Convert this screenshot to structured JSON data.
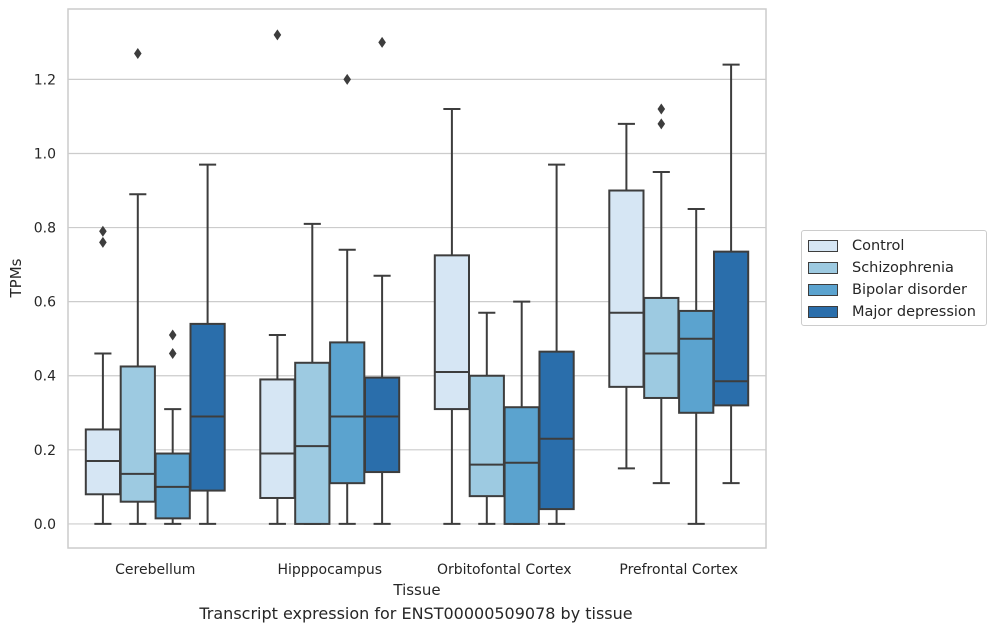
{
  "chart_data": {
    "type": "box",
    "title": "",
    "xlabel": "Tissue",
    "ylabel": "TPMs",
    "caption": "Transcript expression for ENST00000509078 by tissue",
    "ylim": [
      -0.065,
      1.39
    ],
    "yticks": [
      "0.0",
      "0.2",
      "0.4",
      "0.6",
      "0.8",
      "1.0",
      "1.2"
    ],
    "categories": [
      "Cerebellum",
      "Hipppocampus",
      "Orbitofontal Cortex",
      "Prefrontal Cortex"
    ],
    "legend_position": "right",
    "grid": true,
    "series": [
      {
        "name": "Control",
        "color": "#d6e6f4",
        "boxes": [
          {
            "whislo": 0.0,
            "q1": 0.08,
            "med": 0.17,
            "q3": 0.255,
            "whishi": 0.46,
            "fliers": [
              0.76,
              0.79
            ]
          },
          {
            "whislo": 0.0,
            "q1": 0.07,
            "med": 0.19,
            "q3": 0.39,
            "whishi": 0.51,
            "fliers": [
              1.32
            ]
          },
          {
            "whislo": 0.0,
            "q1": 0.31,
            "med": 0.41,
            "q3": 0.725,
            "whishi": 1.12,
            "fliers": []
          },
          {
            "whislo": 0.15,
            "q1": 0.37,
            "med": 0.57,
            "q3": 0.9,
            "whishi": 1.08,
            "fliers": []
          }
        ]
      },
      {
        "name": "Schizophrenia",
        "color": "#9dcae1",
        "boxes": [
          {
            "whislo": 0.0,
            "q1": 0.06,
            "med": 0.135,
            "q3": 0.425,
            "whishi": 0.89,
            "fliers": [
              1.27
            ]
          },
          {
            "whislo": 0.0,
            "q1": 0.0,
            "med": 0.21,
            "q3": 0.435,
            "whishi": 0.81,
            "fliers": []
          },
          {
            "whislo": 0.0,
            "q1": 0.075,
            "med": 0.16,
            "q3": 0.4,
            "whishi": 0.57,
            "fliers": []
          },
          {
            "whislo": 0.11,
            "q1": 0.34,
            "med": 0.46,
            "q3": 0.61,
            "whishi": 0.95,
            "fliers": [
              1.08,
              1.12
            ]
          }
        ]
      },
      {
        "name": "Bipolar disorder",
        "color": "#5ba3cf",
        "boxes": [
          {
            "whislo": 0.0,
            "q1": 0.015,
            "med": 0.1,
            "q3": 0.19,
            "whishi": 0.31,
            "fliers": [
              0.46,
              0.51
            ]
          },
          {
            "whislo": 0.0,
            "q1": 0.11,
            "med": 0.29,
            "q3": 0.49,
            "whishi": 0.74,
            "fliers": [
              1.2
            ]
          },
          {
            "whislo": 0.0,
            "q1": 0.0,
            "med": 0.165,
            "q3": 0.315,
            "whishi": 0.6,
            "fliers": []
          },
          {
            "whislo": 0.0,
            "q1": 0.3,
            "med": 0.5,
            "q3": 0.575,
            "whishi": 0.85,
            "fliers": []
          }
        ]
      },
      {
        "name": "Major depression",
        "color": "#2a6eab",
        "boxes": [
          {
            "whislo": 0.0,
            "q1": 0.09,
            "med": 0.29,
            "q3": 0.54,
            "whishi": 0.97,
            "fliers": []
          },
          {
            "whislo": 0.0,
            "q1": 0.14,
            "med": 0.29,
            "q3": 0.395,
            "whishi": 0.67,
            "fliers": [
              1.3
            ]
          },
          {
            "whislo": 0.0,
            "q1": 0.04,
            "med": 0.23,
            "q3": 0.465,
            "whishi": 0.97,
            "fliers": []
          },
          {
            "whislo": 0.11,
            "q1": 0.32,
            "med": 0.385,
            "q3": 0.735,
            "whishi": 1.24,
            "fliers": []
          }
        ]
      }
    ]
  }
}
